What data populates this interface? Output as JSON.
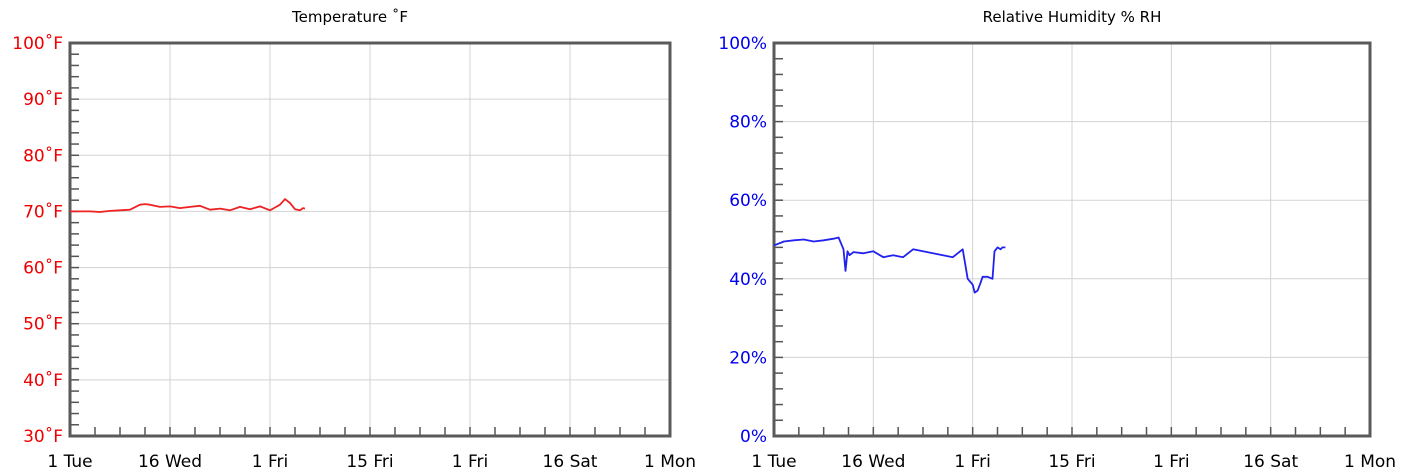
{
  "chart_data": [
    {
      "type": "line",
      "title": "Temperature ˚F",
      "x_categories": [
        "1 Tue",
        "16 Wed",
        "1 Fri",
        "15 Fri",
        "1 Fri",
        "16 Sat",
        "1 Mon"
      ],
      "y_ticks": [
        "30˚F",
        "40˚F",
        "50˚F",
        "60˚F",
        "70˚F",
        "80˚F",
        "90˚F",
        "100˚F"
      ],
      "ylim": [
        30,
        100
      ],
      "grid": true,
      "color": "#ee2222",
      "tick_color": "#ee0000",
      "series": [
        {
          "x": [
            0,
            0.1,
            0.2,
            0.3,
            0.4,
            0.5,
            0.6,
            0.7,
            0.75,
            0.8,
            0.9,
            1.0,
            1.1,
            1.2,
            1.3,
            1.4,
            1.5,
            1.6,
            1.7,
            1.8,
            1.9,
            2.0,
            2.05,
            2.1,
            2.15,
            2.2,
            2.25,
            2.3,
            2.33,
            2.35
          ],
          "y": [
            70,
            70,
            70,
            69.9,
            70.1,
            70.2,
            70.3,
            71.2,
            71.3,
            71.2,
            70.8,
            70.9,
            70.6,
            70.8,
            71,
            70.3,
            70.5,
            70.2,
            70.8,
            70.4,
            70.9,
            70.2,
            70.7,
            71.2,
            72.2,
            71.5,
            70.4,
            70.2,
            70.6,
            70.5
          ]
        }
      ]
    },
    {
      "type": "line",
      "title": "Relative Humidity % RH",
      "x_categories": [
        "1 Tue",
        "16 Wed",
        "1 Fri",
        "15 Fri",
        "1 Fri",
        "16 Sat",
        "1 Mon"
      ],
      "y_ticks": [
        "0%",
        "20%",
        "40%",
        "60%",
        "80%",
        "100%"
      ],
      "ylim": [
        0,
        100
      ],
      "grid": true,
      "color": "#2222ee",
      "tick_color": "#0000ee",
      "series": [
        {
          "x": [
            0,
            0.1,
            0.2,
            0.3,
            0.4,
            0.5,
            0.6,
            0.65,
            0.7,
            0.72,
            0.74,
            0.76,
            0.8,
            0.9,
            1.0,
            1.1,
            1.2,
            1.3,
            1.4,
            1.5,
            1.6,
            1.7,
            1.8,
            1.9,
            1.95,
            2.0,
            2.02,
            2.05,
            2.08,
            2.1,
            2.15,
            2.2,
            2.22,
            2.25,
            2.28,
            2.3,
            2.33
          ],
          "y": [
            48.5,
            49.5,
            49.8,
            50,
            49.5,
            49.8,
            50.2,
            50.5,
            47.5,
            42,
            47,
            46,
            46.8,
            46.5,
            47,
            45.5,
            46,
            45.5,
            47.5,
            47,
            46.5,
            46,
            45.5,
            47.5,
            40,
            38.5,
            36.5,
            37,
            39,
            40.5,
            40.5,
            40,
            47,
            48,
            47.5,
            48,
            48
          ]
        }
      ]
    }
  ]
}
